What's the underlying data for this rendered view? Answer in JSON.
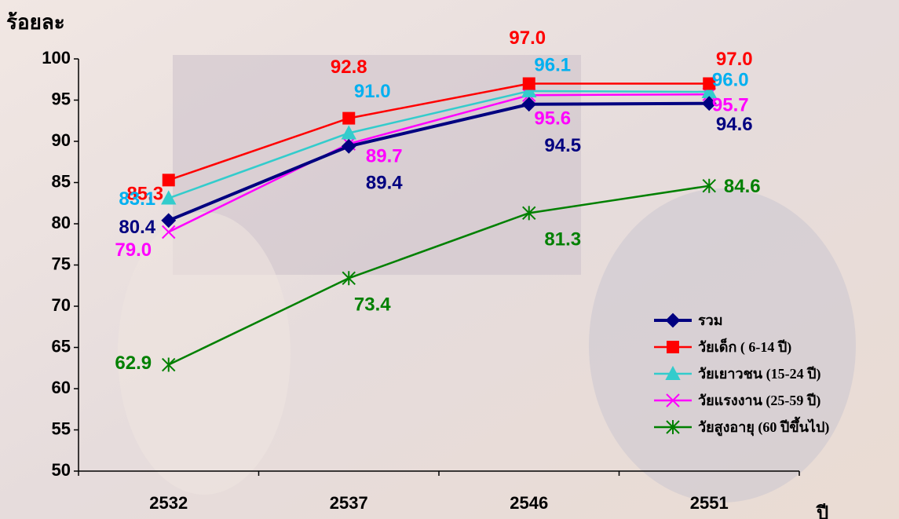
{
  "chart_data": {
    "type": "line",
    "y_axis_label": "ร้อยละ",
    "x_axis_label": "ปี",
    "categories": [
      "2532",
      "2537",
      "2546",
      "2551"
    ],
    "ylim": [
      50,
      100
    ],
    "yticks": [
      50,
      55,
      60,
      65,
      70,
      75,
      80,
      85,
      90,
      95,
      100
    ],
    "legend": "lower right",
    "series": [
      {
        "name": "รวม",
        "color": "#000080",
        "label_color": "#000080",
        "marker": "diamond",
        "values": [
          80.4,
          89.4,
          94.5,
          94.6
        ],
        "value_labels": [
          "80.4",
          "89.4",
          "94.5",
          "94.6"
        ]
      },
      {
        "name": "วัยเด็ก ( 6-14 ปี)",
        "color": "#ff0000",
        "label_color": "#ff0000",
        "marker": "square",
        "values": [
          85.3,
          92.8,
          97,
          97
        ],
        "value_labels": [
          "85.3",
          "92.8",
          "97.0",
          "97.0"
        ]
      },
      {
        "name": "วัยเยาวชน (15-24 ปี)",
        "color": "#33cccc",
        "label_color": "#00b0f0",
        "marker": "triangle",
        "values": [
          83.1,
          91,
          96.1,
          96
        ],
        "value_labels": [
          "83.1",
          "91.0",
          "96.1",
          "96.0"
        ]
      },
      {
        "name": "วัยแรงงาน (25-59 ปี)",
        "color": "#ff00ff",
        "label_color": "#ff00ff",
        "marker": "x",
        "values": [
          79,
          89.7,
          95.6,
          95.7
        ],
        "value_labels": [
          "79.0",
          "89.7",
          "95.6",
          "95.7"
        ]
      },
      {
        "name": "วัยสูงอายุ (60 ปีขึ้นไป)",
        "color": "#008000",
        "label_color": "#008000",
        "marker": "star",
        "values": [
          62.9,
          73.4,
          81.3,
          84.6
        ],
        "value_labels": [
          "62.9",
          "73.4",
          "81.3",
          "84.6"
        ]
      }
    ]
  }
}
